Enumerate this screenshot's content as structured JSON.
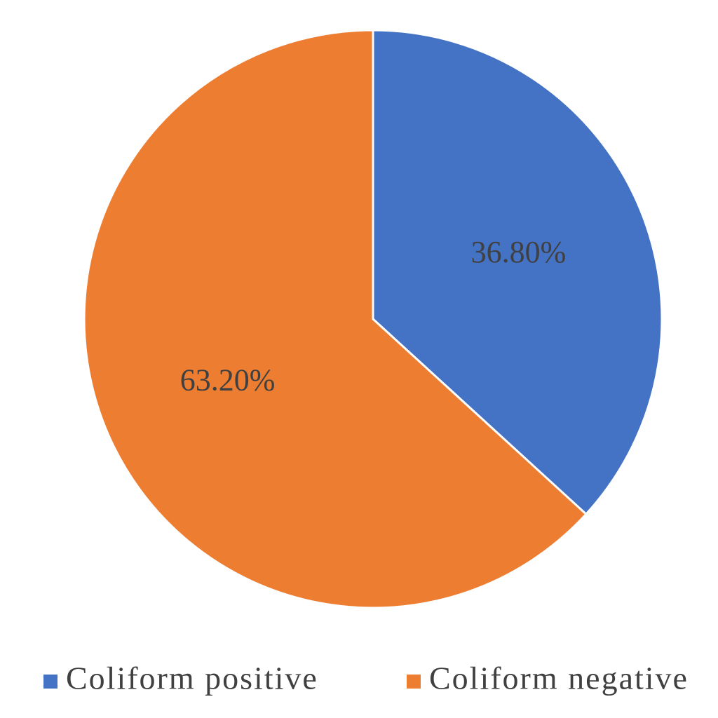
{
  "chart_data": {
    "type": "pie",
    "categories": [
      "Coliform positive",
      "Coliform negative"
    ],
    "values": [
      36.8,
      63.2
    ],
    "value_labels": [
      "36.80%",
      "63.20%"
    ],
    "colors": [
      "#4472c4",
      "#ed7d31"
    ],
    "legend": "bottom"
  }
}
